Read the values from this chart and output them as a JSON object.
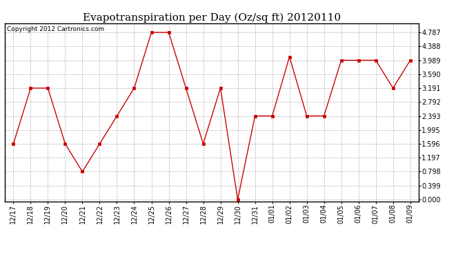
{
  "title": "Evapotranspiration per Day (Oz/sq ft) 20120110",
  "copyright_text": "Copyright 2012 Cartronics.com",
  "x_labels": [
    "12/17",
    "12/18",
    "12/19",
    "12/20",
    "12/21",
    "12/22",
    "12/23",
    "12/24",
    "12/25",
    "12/26",
    "12/27",
    "12/28",
    "12/29",
    "12/30",
    "12/31",
    "01/01",
    "01/02",
    "01/03",
    "01/04",
    "01/05",
    "01/06",
    "01/07",
    "01/08",
    "01/09"
  ],
  "y_values": [
    1.596,
    3.191,
    3.191,
    1.596,
    0.798,
    1.596,
    2.393,
    3.191,
    4.787,
    4.787,
    3.191,
    1.596,
    3.191,
    0.0,
    2.393,
    2.393,
    4.089,
    2.393,
    2.393,
    3.989,
    3.989,
    3.989,
    3.191,
    3.989
  ],
  "line_color": "#cc0000",
  "marker_color": "#cc0000",
  "bg_color": "#ffffff",
  "grid_color": "#aaaaaa",
  "y_ticks": [
    0.0,
    0.399,
    0.798,
    1.197,
    1.596,
    1.995,
    2.393,
    2.792,
    3.191,
    3.59,
    3.989,
    4.388,
    4.787
  ],
  "ylim": [
    -0.05,
    5.05
  ],
  "title_fontsize": 11,
  "tick_fontsize": 7,
  "copyright_fontsize": 6.5,
  "figwidth": 6.9,
  "figheight": 3.75,
  "dpi": 100
}
